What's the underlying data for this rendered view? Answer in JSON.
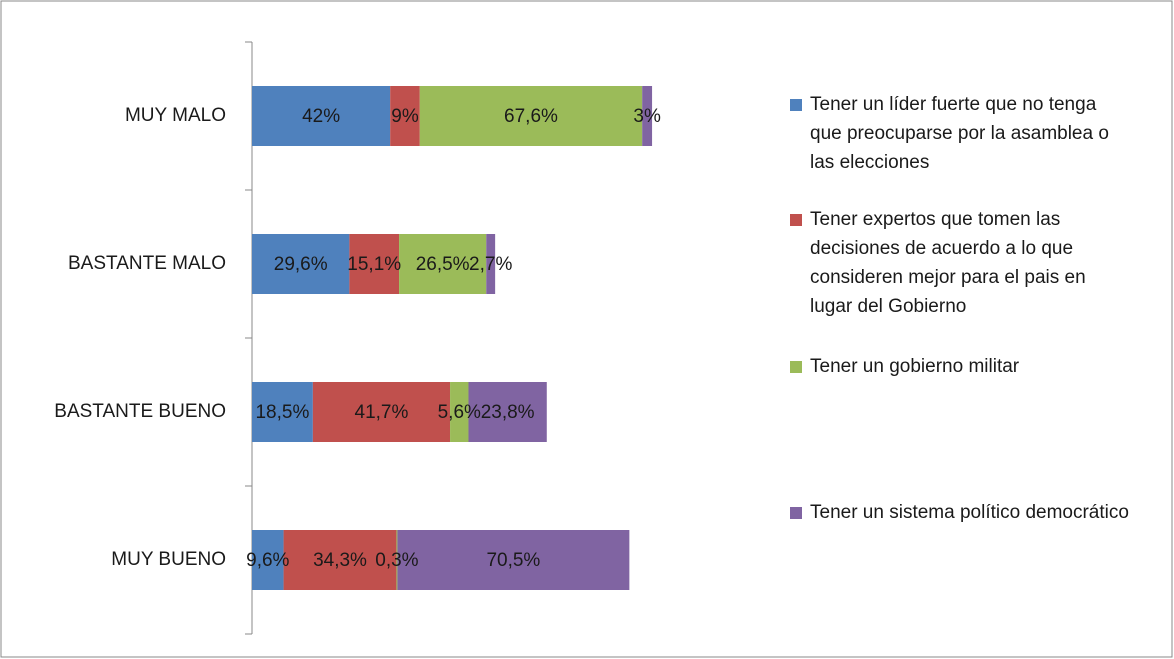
{
  "chart_data": {
    "type": "bar",
    "orientation": "horizontal",
    "stacked": true,
    "categories": [
      "MUY MALO",
      "BASTANTE MALO",
      "BASTANTE BUENO",
      "MUY BUENO"
    ],
    "series": [
      {
        "name": "Tener un líder fuerte que no tenga que preocuparse por la asamblea o las elecciones",
        "color": "#4f81bd",
        "values": [
          42,
          29.6,
          18.5,
          9.6
        ],
        "value_labels": [
          "42%",
          "29,6%",
          "18,5%",
          "9,6%"
        ]
      },
      {
        "name": "Tener expertos que tomen las decisiones de acuerdo a lo que consideren mejor para el pais en lugar del Gobierno",
        "color": "#c0504d",
        "values": [
          9,
          15.1,
          41.7,
          34.3
        ],
        "value_labels": [
          "9%",
          "15,1%",
          "41,7%",
          "34,3%"
        ]
      },
      {
        "name": "Tener un gobierno militar",
        "color": "#9bbb59",
        "values": [
          67.6,
          26.5,
          5.6,
          0.3
        ],
        "value_labels": [
          "67,6%",
          "26,5%",
          "5,6%",
          "0,3%"
        ]
      },
      {
        "name": "Tener un sistema político democrático",
        "color": "#8064a2",
        "values": [
          3,
          2.7,
          23.8,
          70.5
        ],
        "value_labels": [
          "3%",
          "2,7%",
          "23,8%",
          "70,5%"
        ]
      }
    ],
    "legend": "right"
  }
}
